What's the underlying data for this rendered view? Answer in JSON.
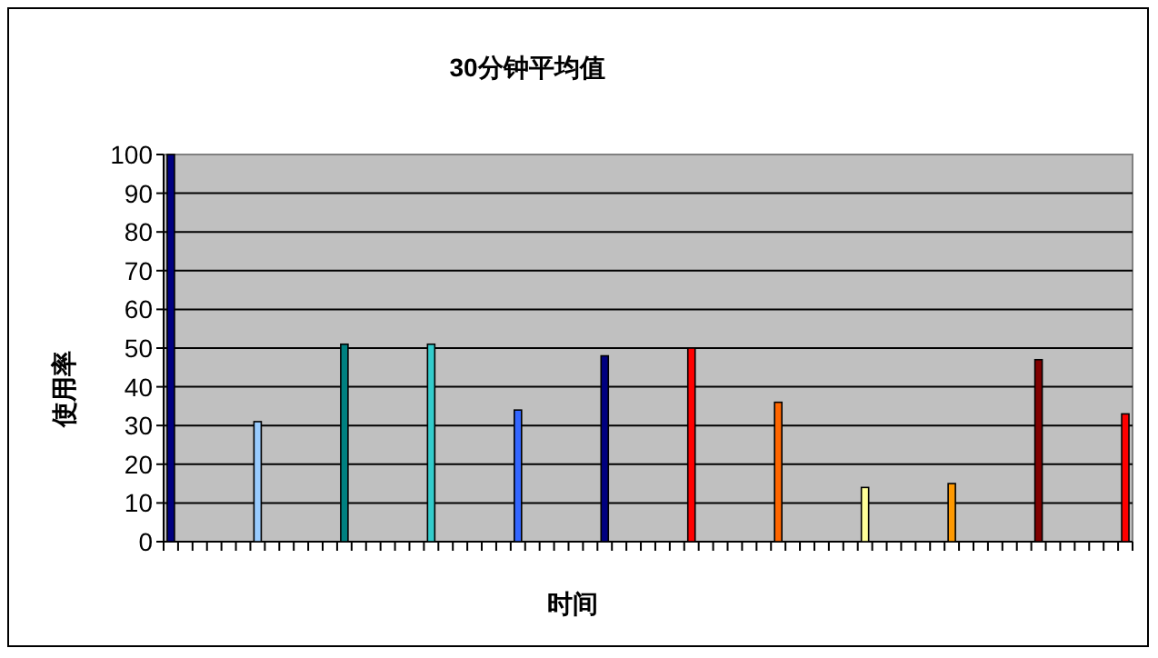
{
  "chart_data": {
    "type": "bar",
    "title": "30分钟平均值",
    "xlabel": "时间",
    "ylabel": "使用率",
    "categories": [
      null,
      null,
      null,
      null,
      null,
      null,
      null,
      null,
      null,
      null,
      null,
      null,
      null,
      null,
      null,
      null,
      null,
      null,
      null,
      null,
      null,
      null,
      null,
      null,
      null,
      null,
      null,
      null,
      null,
      null,
      null,
      null,
      null,
      null,
      null,
      null,
      null,
      null,
      null,
      null,
      null,
      null,
      null,
      null,
      null,
      null,
      null,
      null,
      null,
      null,
      null,
      null,
      null,
      null,
      null,
      null,
      null,
      null,
      null,
      null,
      null,
      null,
      null,
      null,
      null,
      null,
      null
    ],
    "values": [
      100,
      null,
      null,
      null,
      null,
      null,
      31,
      null,
      null,
      null,
      null,
      null,
      51,
      null,
      null,
      null,
      null,
      null,
      51,
      null,
      null,
      null,
      null,
      null,
      34,
      null,
      null,
      null,
      null,
      null,
      48,
      null,
      null,
      null,
      null,
      null,
      50,
      null,
      null,
      null,
      null,
      null,
      36,
      null,
      null,
      null,
      null,
      null,
      14,
      null,
      null,
      null,
      null,
      null,
      15,
      null,
      null,
      null,
      null,
      null,
      47,
      null,
      null,
      null,
      null,
      null,
      33
    ],
    "colors": [
      "#000080",
      null,
      null,
      null,
      null,
      null,
      "#99ccff",
      null,
      null,
      null,
      null,
      null,
      "#008080",
      null,
      null,
      null,
      null,
      null,
      "#33cccc",
      null,
      null,
      null,
      null,
      null,
      "#3366ff",
      null,
      null,
      null,
      null,
      null,
      "#000080",
      null,
      null,
      null,
      null,
      null,
      "#ff0000",
      null,
      null,
      null,
      null,
      null,
      "#ff6600",
      null,
      null,
      null,
      null,
      null,
      "#ffff99",
      null,
      null,
      null,
      null,
      null,
      "#ff9900",
      null,
      null,
      null,
      null,
      null,
      "#800000",
      null,
      null,
      null,
      null,
      null,
      "#ff0000"
    ],
    "ylim": [
      0,
      100
    ],
    "yticks": [
      0,
      10,
      20,
      30,
      40,
      50,
      60,
      70,
      80,
      90,
      100
    ],
    "grid": "y"
  }
}
